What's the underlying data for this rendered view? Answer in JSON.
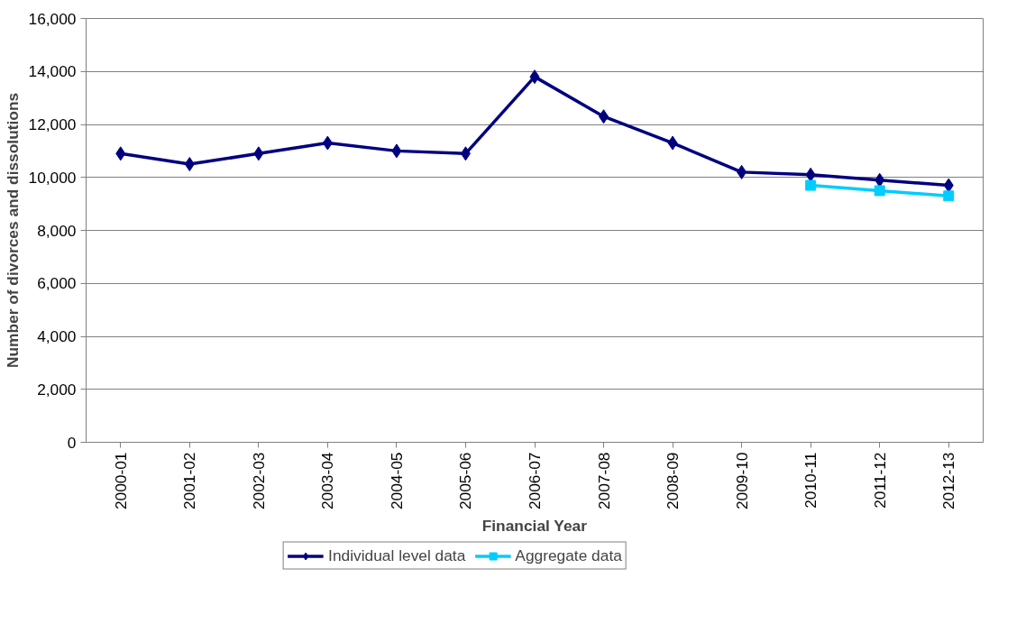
{
  "chart_data": {
    "type": "line",
    "xlabel": "Financial Year",
    "ylabel": "Number of divorces and dissolutions",
    "categories": [
      "2000-01",
      "2001-02",
      "2002-03",
      "2003-04",
      "2004-05",
      "2005-06",
      "2006-07",
      "2007-08",
      "2008-09",
      "2009-10",
      "2010-11",
      "2011-12",
      "2012-13"
    ],
    "series": [
      {
        "name": "Individual level data",
        "color": "#000080",
        "marker": "diamond",
        "values": [
          10900,
          10500,
          10900,
          11300,
          11000,
          10900,
          13800,
          12300,
          11300,
          10200,
          10100,
          9900,
          9700
        ]
      },
      {
        "name": "Aggregate data",
        "color": "#00ccff",
        "marker": "square",
        "values": [
          null,
          null,
          null,
          null,
          null,
          null,
          null,
          null,
          null,
          null,
          9700,
          9500,
          9300
        ]
      }
    ],
    "ylim": [
      0,
      16000
    ],
    "yticks": [
      {
        "value": 0,
        "label": "0"
      },
      {
        "value": 2000,
        "label": "2,000"
      },
      {
        "value": 4000,
        "label": "4,000"
      },
      {
        "value": 6000,
        "label": "6,000"
      },
      {
        "value": 8000,
        "label": "8,000"
      },
      {
        "value": 10000,
        "label": "10,000"
      },
      {
        "value": 12000,
        "label": "12,000"
      },
      {
        "value": 14000,
        "label": "14,000"
      },
      {
        "value": 16000,
        "label": "16,000"
      }
    ],
    "grid": "y",
    "legend": "bottom",
    "line_style": "solid"
  }
}
